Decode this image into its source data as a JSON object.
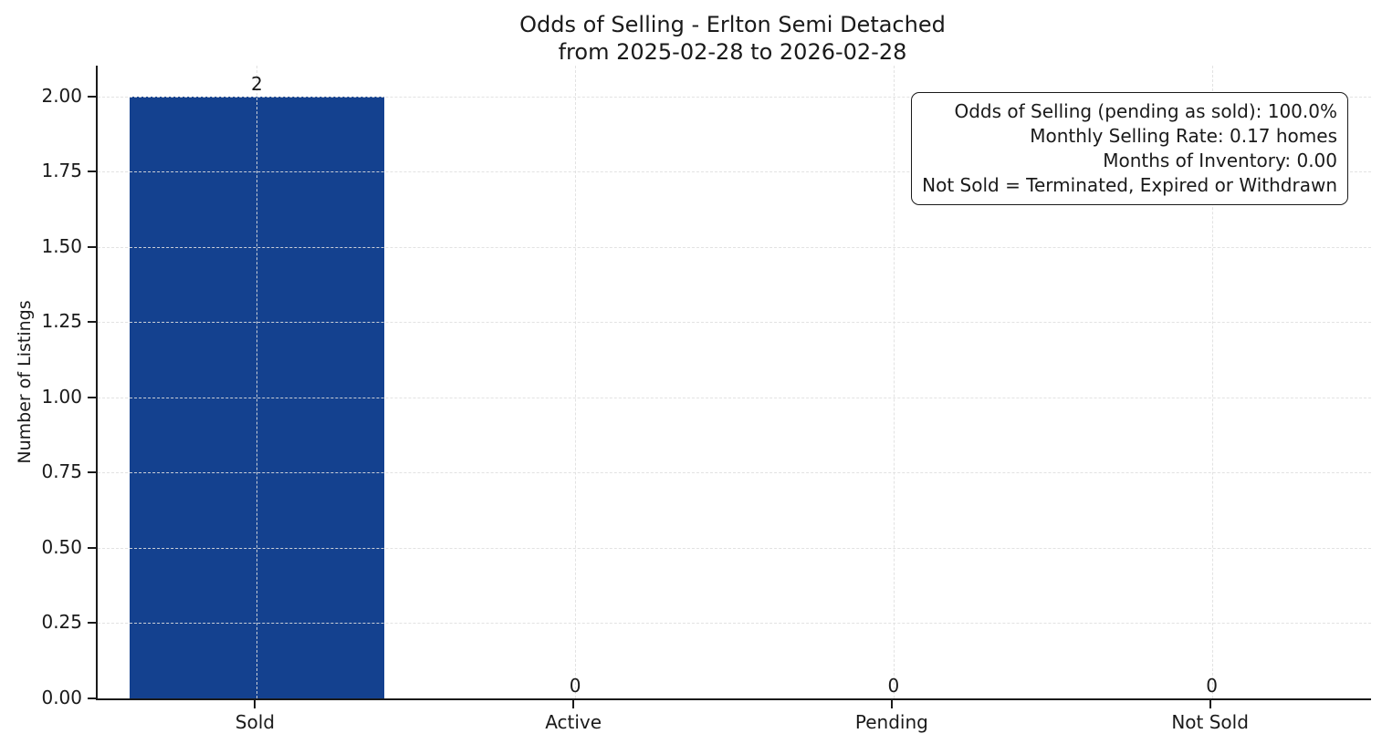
{
  "title": {
    "line1": "Odds of Selling - Erlton Semi Detached",
    "line2": "from 2025-02-28 to 2026-02-28"
  },
  "annotation_box": {
    "lines": [
      "Odds of Selling (pending as sold): 100.0%",
      "Monthly Selling Rate: 0.17 homes",
      "Months of Inventory: 0.00",
      "Not Sold = Terminated, Expired or Withdrawn"
    ]
  },
  "chart_data": {
    "type": "bar",
    "title": "Odds of Selling - Erlton Semi Detached\nfrom 2025-02-28 to 2026-02-28",
    "categories": [
      "Sold",
      "Active",
      "Pending",
      "Not Sold"
    ],
    "values": [
      2,
      0,
      0,
      0
    ],
    "value_labels": [
      "2",
      "0",
      "0",
      "0"
    ],
    "xlabel": "",
    "ylabel": "Number of Listings",
    "ylim": [
      0,
      2.103
    ],
    "yticks": [
      0.0,
      0.25,
      0.5,
      0.75,
      1.0,
      1.25,
      1.5,
      1.75,
      2.0
    ],
    "ytick_labels": [
      "0.00",
      "0.25",
      "0.50",
      "0.75",
      "1.00",
      "1.25",
      "1.50",
      "1.75",
      "2.00"
    ],
    "bar_color": "#14418F",
    "bar_width_fraction": 0.8,
    "grid": "dashed, both axes, drawn above bars",
    "legend": "none",
    "spines": "left and bottom only"
  }
}
